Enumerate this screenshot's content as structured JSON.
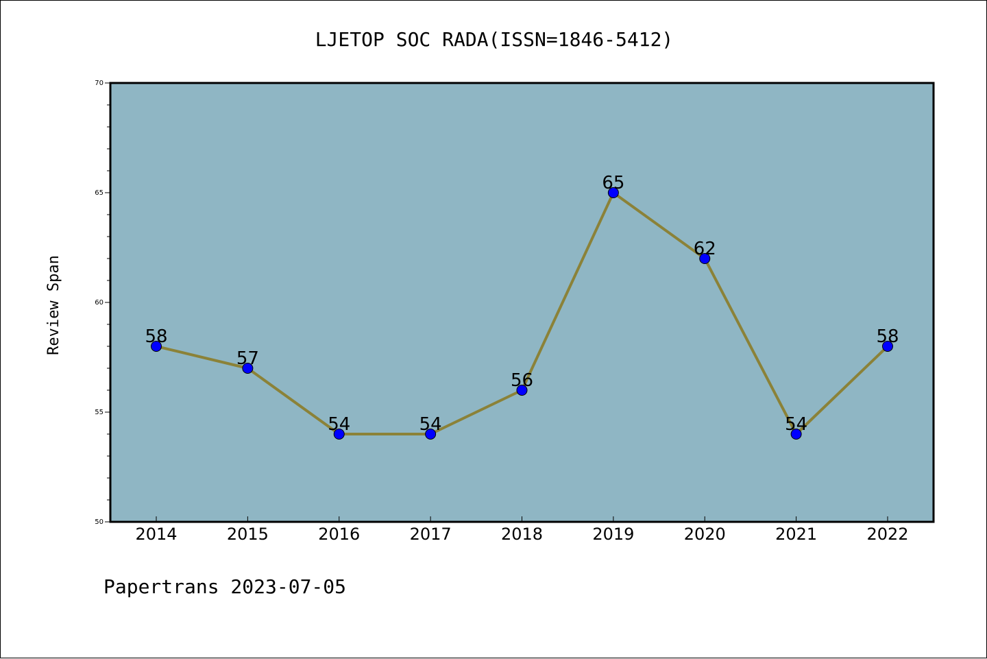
{
  "chart_data": {
    "type": "line",
    "title": "LJETOP SOC RADA(ISSN=1846-5412)",
    "xlabel": "",
    "ylabel": "Review Span",
    "categories": [
      "2014",
      "2015",
      "2016",
      "2017",
      "2018",
      "2019",
      "2020",
      "2021",
      "2022"
    ],
    "series": [
      {
        "values": [
          58,
          57,
          54,
          54,
          56,
          65,
          62,
          54,
          58
        ]
      }
    ],
    "data_labels": [
      "58",
      "57",
      "54",
      "54",
      "56",
      "65",
      "62",
      "54",
      "58"
    ],
    "ylim": [
      50,
      70
    ],
    "yticks": [
      "50",
      "55",
      "60",
      "65",
      "70"
    ],
    "grid": false,
    "legend": "none",
    "colors": {
      "plot_background": "#8fb6c4",
      "line": "#8b8238",
      "marker": "#0000ff",
      "axes": "#000000"
    }
  },
  "footer": {
    "credit": "Papertrans 2023-07-05"
  }
}
